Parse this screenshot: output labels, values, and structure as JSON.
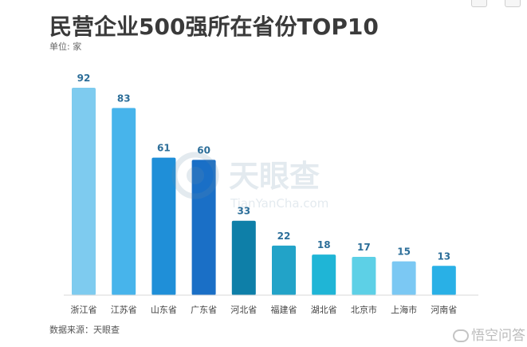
{
  "header": {
    "title": "民营企业500强所在省份TOP10",
    "unit": "单位: 家"
  },
  "footer": {
    "source": "数据来源：天眼查"
  },
  "watermark": {
    "center_text": "天眼查",
    "center_subtext": "TianYanCha.com",
    "brand_text": "悟空问答"
  },
  "chart_data": {
    "type": "bar",
    "categories": [
      "浙江省",
      "江苏省",
      "山东省",
      "广东省",
      "河北省",
      "福建省",
      "湖北省",
      "北京市",
      "上海市",
      "河南省"
    ],
    "values": [
      92,
      83,
      61,
      60,
      33,
      22,
      18,
      17,
      15,
      13
    ],
    "colors": [
      "#7ecbef",
      "#47b4eb",
      "#1f8fd8",
      "#1a6fc6",
      "#0e7fa8",
      "#22a3c8",
      "#1fb5d6",
      "#5dd0e6",
      "#7bc8f3",
      "#29b0e6"
    ],
    "title": "民营企业500强所在省份TOP10",
    "xlabel": "",
    "ylabel": "",
    "ylim": [
      0,
      100
    ],
    "value_label_color": "#2c6e99",
    "grid": false
  }
}
